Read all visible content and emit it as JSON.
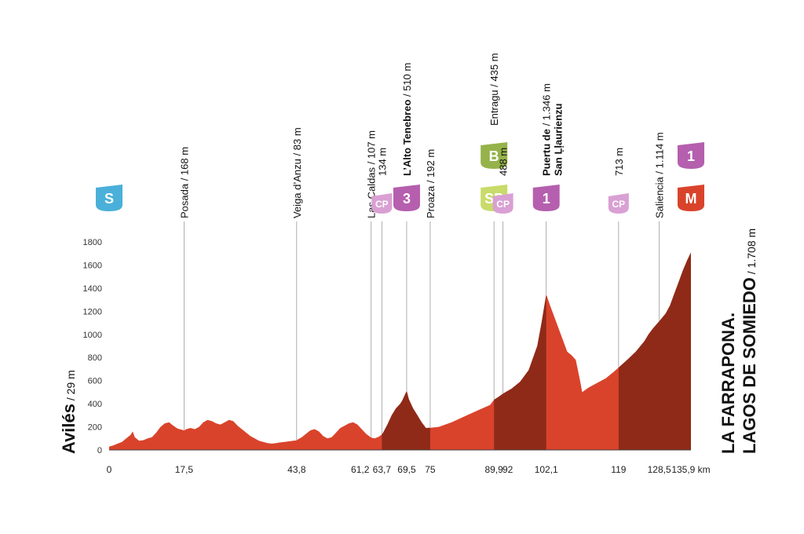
{
  "chart_data": {
    "type": "area",
    "title": "",
    "xlabel": "",
    "ylabel": "",
    "x_unit": "km",
    "ylim": [
      0,
      1800
    ],
    "yticks": [
      0,
      200,
      400,
      600,
      800,
      1000,
      1200,
      1400,
      1600,
      1800
    ],
    "grid": false,
    "start": {
      "name": "Avilés",
      "altitude": "29 m"
    },
    "finish": {
      "name_line1": "LA FARRAPONA.",
      "name_line2": "LAGOS DE SOMIEDO",
      "altitude": "1.708 m"
    },
    "km_ticks": [
      {
        "km": 0,
        "label": "0"
      },
      {
        "km": 17.5,
        "label": "17,5"
      },
      {
        "km": 43.8,
        "label": "43,8"
      },
      {
        "km": 61.2,
        "label": "61,2"
      },
      {
        "km": 63.7,
        "label": "63,7"
      },
      {
        "km": 69.5,
        "label": "69,5"
      },
      {
        "km": 75,
        "label": "75"
      },
      {
        "km": 89.9,
        "label": "89,9"
      },
      {
        "km": 92,
        "label": "92"
      },
      {
        "km": 102.1,
        "label": "102,1"
      },
      {
        "km": 119,
        "label": "119"
      },
      {
        "km": 128.5,
        "label": "128,5"
      },
      {
        "km": 135.9,
        "label": "135,9 km"
      }
    ],
    "profile": [
      [
        0,
        29
      ],
      [
        1,
        40
      ],
      [
        2,
        55
      ],
      [
        3,
        70
      ],
      [
        4,
        100
      ],
      [
        5,
        130
      ],
      [
        5.5,
        160
      ],
      [
        6,
        110
      ],
      [
        7,
        80
      ],
      [
        8,
        85
      ],
      [
        9,
        100
      ],
      [
        10,
        110
      ],
      [
        11,
        150
      ],
      [
        12,
        200
      ],
      [
        13,
        230
      ],
      [
        14,
        240
      ],
      [
        15,
        210
      ],
      [
        16,
        185
      ],
      [
        17,
        175
      ],
      [
        17.5,
        168
      ],
      [
        18,
        180
      ],
      [
        19,
        190
      ],
      [
        20,
        180
      ],
      [
        21,
        200
      ],
      [
        22,
        240
      ],
      [
        23,
        260
      ],
      [
        24,
        250
      ],
      [
        25,
        230
      ],
      [
        26,
        220
      ],
      [
        27,
        240
      ],
      [
        28,
        260
      ],
      [
        29,
        250
      ],
      [
        30,
        210
      ],
      [
        31,
        180
      ],
      [
        32,
        150
      ],
      [
        33,
        120
      ],
      [
        34,
        100
      ],
      [
        35,
        80
      ],
      [
        36,
        70
      ],
      [
        37,
        60
      ],
      [
        38,
        55
      ],
      [
        39,
        60
      ],
      [
        40,
        65
      ],
      [
        41,
        70
      ],
      [
        42,
        75
      ],
      [
        43,
        80
      ],
      [
        43.8,
        83
      ],
      [
        44,
        90
      ],
      [
        45,
        110
      ],
      [
        46,
        140
      ],
      [
        47,
        170
      ],
      [
        48,
        180
      ],
      [
        49,
        160
      ],
      [
        50,
        120
      ],
      [
        51,
        100
      ],
      [
        52,
        110
      ],
      [
        53,
        150
      ],
      [
        54,
        190
      ],
      [
        55,
        210
      ],
      [
        56,
        230
      ],
      [
        57,
        240
      ],
      [
        58,
        220
      ],
      [
        59,
        180
      ],
      [
        60,
        140
      ],
      [
        61.2,
        107
      ],
      [
        62,
        100
      ],
      [
        63,
        115
      ],
      [
        63.7,
        134
      ],
      [
        64,
        150
      ],
      [
        65,
        220
      ],
      [
        66,
        300
      ],
      [
        67,
        360
      ],
      [
        68,
        400
      ],
      [
        68.5,
        430
      ],
      [
        69,
        470
      ],
      [
        69.5,
        510
      ],
      [
        70,
        440
      ],
      [
        71,
        360
      ],
      [
        72,
        300
      ],
      [
        73,
        240
      ],
      [
        74,
        190
      ],
      [
        75,
        192
      ],
      [
        77,
        200
      ],
      [
        80,
        240
      ],
      [
        83,
        290
      ],
      [
        86,
        340
      ],
      [
        89,
        390
      ],
      [
        89.9,
        435
      ],
      [
        91,
        460
      ],
      [
        92,
        488
      ],
      [
        94,
        530
      ],
      [
        96,
        590
      ],
      [
        98,
        690
      ],
      [
        100,
        900
      ],
      [
        101,
        1100
      ],
      [
        102.1,
        1346
      ],
      [
        103,
        1250
      ],
      [
        104,
        1150
      ],
      [
        105,
        1050
      ],
      [
        106,
        950
      ],
      [
        107,
        850
      ],
      [
        108,
        820
      ],
      [
        109,
        780
      ],
      [
        110,
        600
      ],
      [
        110.5,
        500
      ],
      [
        112,
        540
      ],
      [
        114,
        580
      ],
      [
        116,
        620
      ],
      [
        118,
        680
      ],
      [
        119,
        713
      ],
      [
        121,
        780
      ],
      [
        123,
        850
      ],
      [
        125,
        940
      ],
      [
        126,
        1000
      ],
      [
        127,
        1050
      ],
      [
        128.5,
        1114
      ],
      [
        130,
        1180
      ],
      [
        131,
        1250
      ],
      [
        132,
        1350
      ],
      [
        133,
        1450
      ],
      [
        134,
        1550
      ],
      [
        135,
        1640
      ],
      [
        135.9,
        1708
      ]
    ],
    "shaded_segments": [
      [
        63.7,
        75
      ],
      [
        89.9,
        102.1
      ],
      [
        119,
        135.9
      ]
    ],
    "points": [
      {
        "km": 0,
        "name": "",
        "alt": "",
        "badge": "S",
        "badge_type": "start",
        "color": "#4ab0d9"
      },
      {
        "km": 17.5,
        "name": "Posada",
        "alt": "/ 168 m",
        "bold": false
      },
      {
        "km": 43.8,
        "name": "Veiga d’Anzu",
        "alt": "/ 83 m",
        "bold": false
      },
      {
        "km": 61.2,
        "name": "Las Caldas",
        "alt": "/ 107 m",
        "bold": false
      },
      {
        "km": 63.7,
        "name": "",
        "alt": "134 m",
        "badge": "CP",
        "badge_type": "cp",
        "color": "#d9a0d3"
      },
      {
        "km": 69.5,
        "name": "L’Alto Tenebreo",
        "alt": "/ 510 m",
        "bold": true,
        "badge": "3",
        "badge_type": "climb",
        "color": "#b55fae"
      },
      {
        "km": 75,
        "name": "Proaza",
        "alt": "/ 192 m",
        "bold": false
      },
      {
        "km": 89.9,
        "name": "Entragu",
        "alt": "/ 435 m",
        "bold": false,
        "badge": "SP",
        "badge_type": "sprint",
        "color": "#c9db6a",
        "badge2": "B",
        "badge2_color": "#95b34a"
      },
      {
        "km": 92,
        "name": "",
        "alt": "488 m",
        "badge": "CP",
        "badge_type": "cp",
        "color": "#d9a0d3"
      },
      {
        "km": 102.1,
        "name": "Puertu de",
        "name2": "San Ḷḷaurienzu",
        "alt": "/ 1.346 m",
        "bold": true,
        "badge": "1",
        "badge_type": "climb",
        "color": "#b55fae"
      },
      {
        "km": 119,
        "name": "",
        "alt": "713 m",
        "badge": "CP",
        "badge_type": "cp",
        "color": "#d9a0d3"
      },
      {
        "km": 128.5,
        "name": "Saliencia",
        "alt": "/ 1.114 m",
        "bold": false
      },
      {
        "km": 135.9,
        "name": "",
        "alt": "",
        "badge": "M",
        "badge_type": "finish",
        "color": "#d9432b",
        "badge2": "1",
        "badge2_color": "#b55fae"
      }
    ],
    "colors": {
      "profile": "#d9432b",
      "profile_dark": "#8f2a18",
      "leader": "#9a9a9a"
    }
  }
}
